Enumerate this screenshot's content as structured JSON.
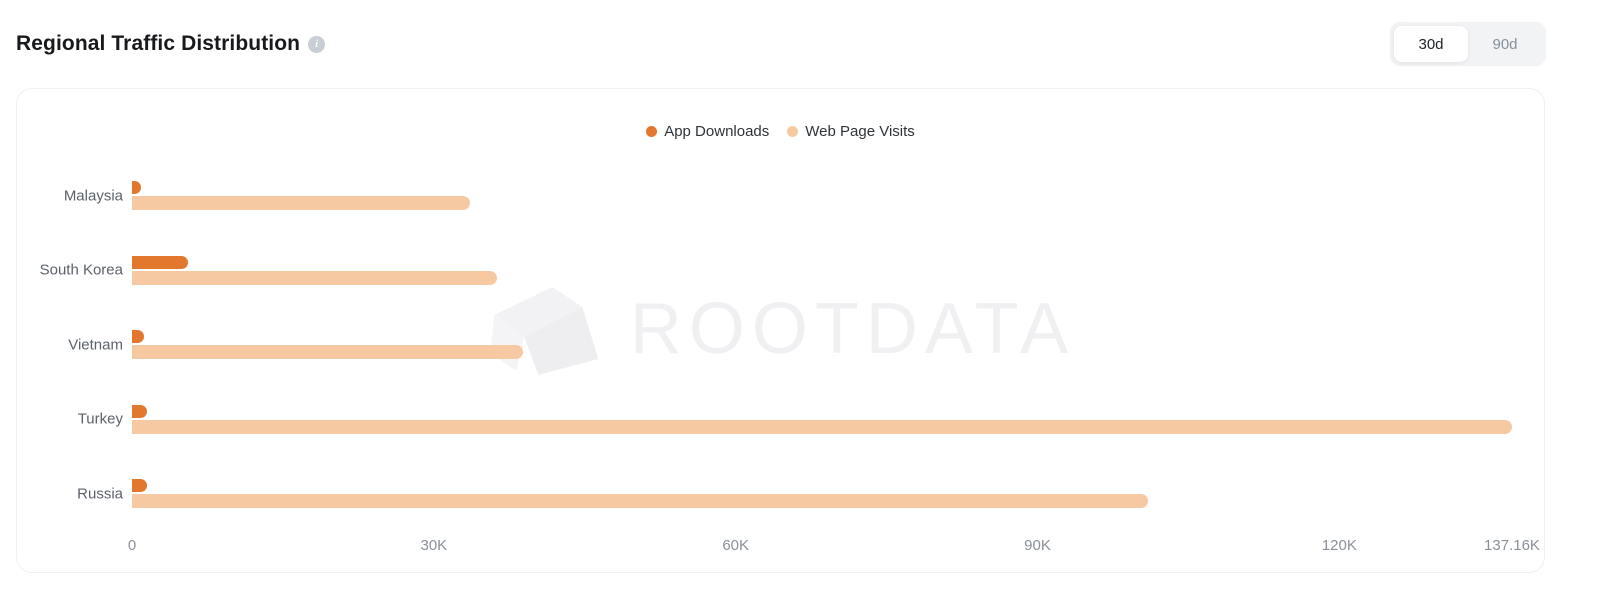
{
  "header": {
    "title": "Regional Traffic Distribution",
    "range_toggle": {
      "options": [
        {
          "label": "30d",
          "active": true
        },
        {
          "label": "90d",
          "active": false
        }
      ]
    }
  },
  "legend": [
    {
      "label": "App Downloads",
      "color": "#e2772e"
    },
    {
      "label": "Web Page Visits",
      "color": "#f7c9a3"
    }
  ],
  "watermark": "ROOTDATA",
  "colors": {
    "app_downloads": "#e2772e",
    "web_page_visits": "#f7c9a3",
    "axis_text": "#8a9099",
    "category_text": "#5b626b"
  },
  "chart_data": {
    "type": "bar",
    "orientation": "horizontal",
    "title": "Regional Traffic Distribution",
    "categories": [
      "Malaysia",
      "South Korea",
      "Vietnam",
      "Turkey",
      "Russia"
    ],
    "series": [
      {
        "name": "App Downloads",
        "color": "#e2772e",
        "values": [
          900,
          5600,
          1200,
          1500,
          1500
        ]
      },
      {
        "name": "Web Page Visits",
        "color": "#f7c9a3",
        "values": [
          33600,
          36300,
          38900,
          137160,
          101000
        ]
      }
    ],
    "x_ticks": [
      {
        "label": "0",
        "value": 0
      },
      {
        "label": "30K",
        "value": 30000
      },
      {
        "label": "60K",
        "value": 60000
      },
      {
        "label": "90K",
        "value": 90000
      },
      {
        "label": "120K",
        "value": 120000
      },
      {
        "label": "137.16K",
        "value": 137160
      }
    ],
    "xlim": [
      0,
      137160
    ],
    "grid": false,
    "legend_position": "top-center"
  }
}
